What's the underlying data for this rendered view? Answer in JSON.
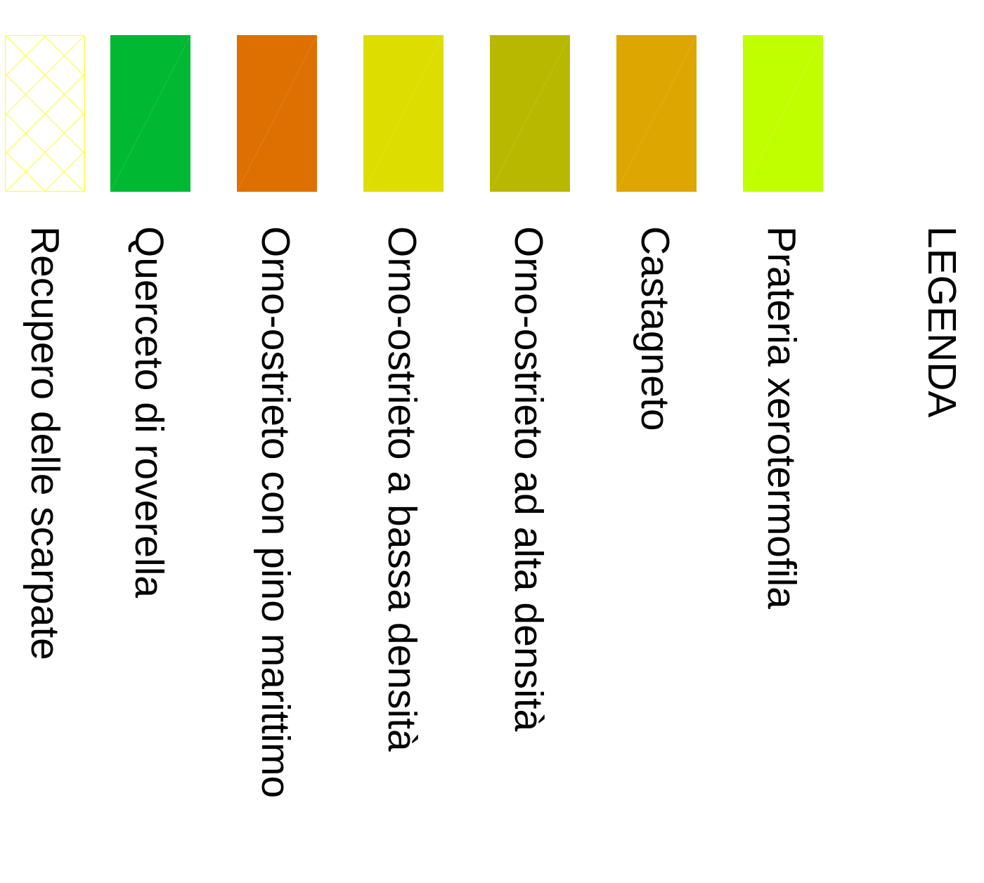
{
  "legend": {
    "title": "LEGENDA",
    "items": [
      {
        "label": "Recupero delle scarpate",
        "color": "#ffff00",
        "pattern": "crosshatch-outline",
        "icon": "crosshatch-swatch-icon"
      },
      {
        "label": "Querceto di roverella",
        "color": "#00b832",
        "pattern": "solid",
        "icon": "green-swatch-icon"
      },
      {
        "label": "Orno-ostrieto con pino marittimo",
        "color": "#dd7000",
        "pattern": "solid",
        "icon": "orange-swatch-icon"
      },
      {
        "label": "Orno-ostrieto a bassa densità",
        "color": "#dddd00",
        "pattern": "solid",
        "icon": "yellow-swatch-icon"
      },
      {
        "label": "Orno-ostrieto ad alta densità",
        "color": "#b8b800",
        "pattern": "solid",
        "icon": "olive-swatch-icon"
      },
      {
        "label": "Castagneto",
        "color": "#dda600",
        "pattern": "solid",
        "icon": "amber-swatch-icon"
      },
      {
        "label": "Prateria xerotermofila",
        "color": "#c0ff00",
        "pattern": "solid",
        "icon": "lime-swatch-icon"
      }
    ]
  }
}
